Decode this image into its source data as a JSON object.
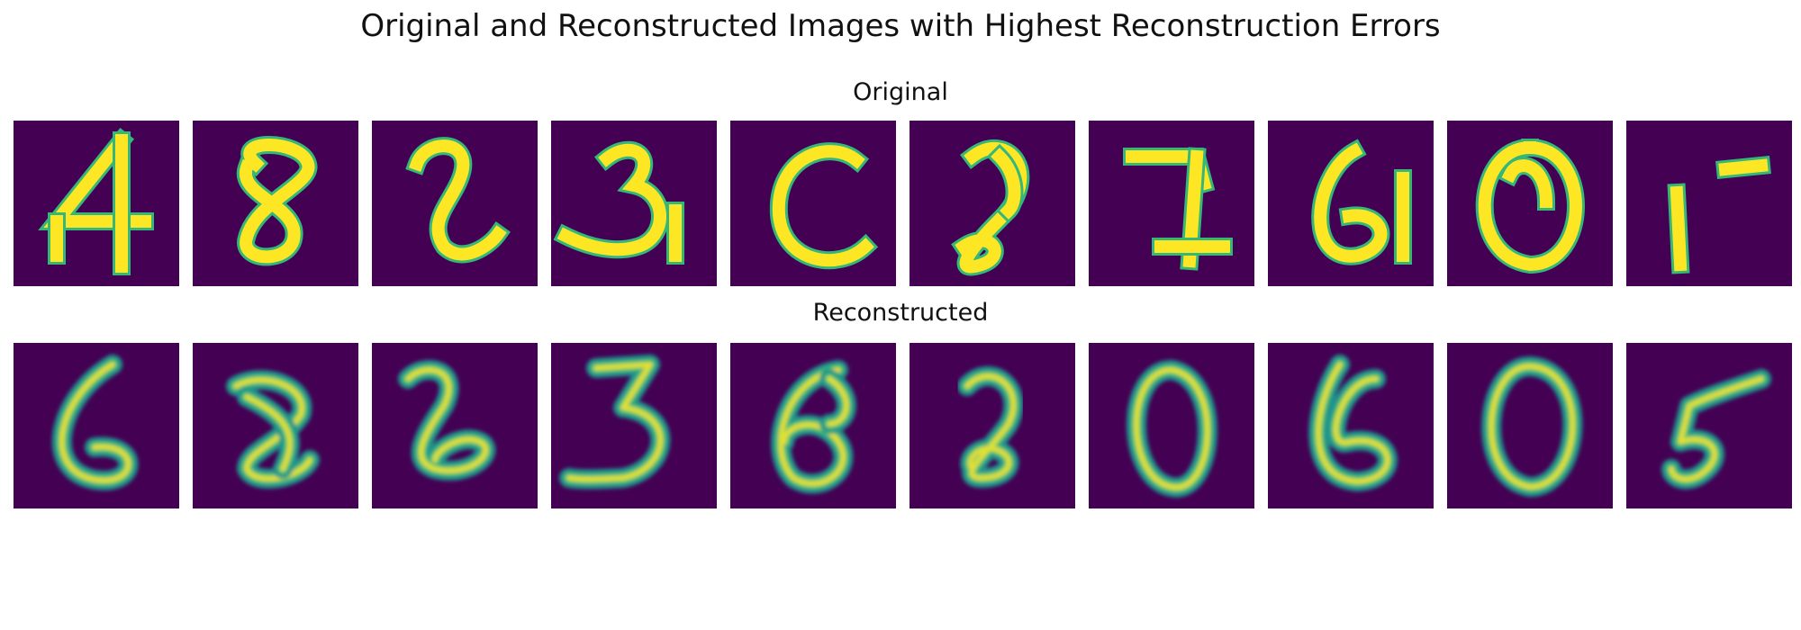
{
  "figure": {
    "title": "Original and Reconstructed Images with Highest Reconstruction Errors"
  },
  "rows": [
    {
      "key": "original",
      "title": "Original",
      "style": "pixelated",
      "images": [
        {
          "label": "4"
        },
        {
          "label": "8"
        },
        {
          "label": "2"
        },
        {
          "label": "3"
        },
        {
          "label": "c"
        },
        {
          "label": "2"
        },
        {
          "label": "7"
        },
        {
          "label": "6"
        },
        {
          "label": "0"
        },
        {
          "label": "1"
        }
      ]
    },
    {
      "key": "reconstructed",
      "title": "Reconstructed",
      "style": "blurred",
      "images": [
        {
          "label": "6"
        },
        {
          "label": "8"
        },
        {
          "label": "2"
        },
        {
          "label": "3"
        },
        {
          "label": "6"
        },
        {
          "label": "2"
        },
        {
          "label": "0"
        },
        {
          "label": "6"
        },
        {
          "label": "0"
        },
        {
          "label": "5"
        }
      ]
    }
  ],
  "colors": {
    "background": "#440154",
    "stroke_bright": "#fde725",
    "stroke_mid": "#35b779",
    "stroke_edge": "#21918c"
  }
}
